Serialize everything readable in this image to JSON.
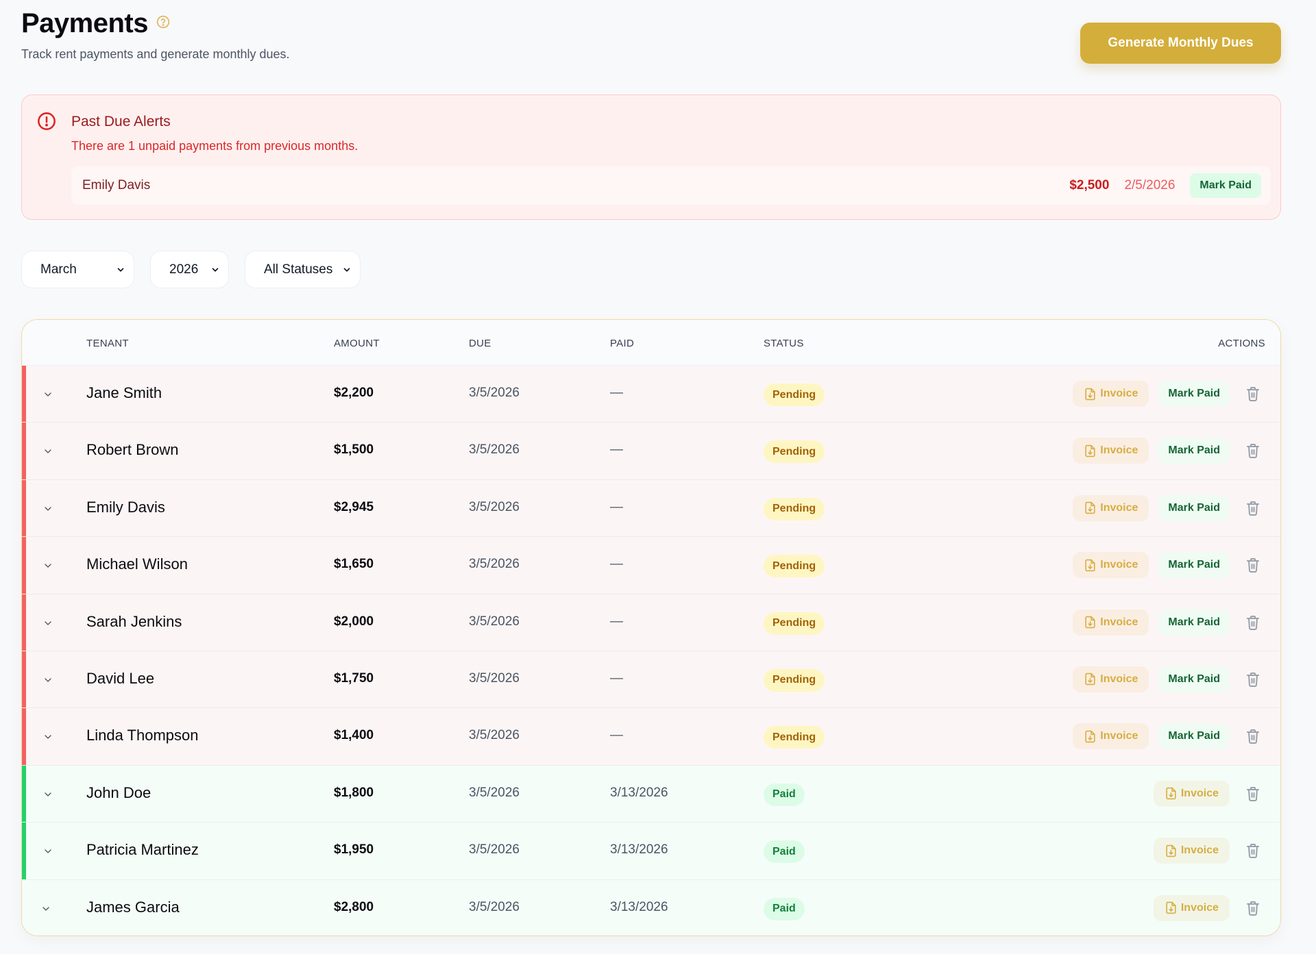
{
  "header": {
    "title": "Payments",
    "help_icon": "help-circle-icon",
    "subtitle": "Track rent payments and generate monthly dues.",
    "generate_button": "Generate Monthly Dues"
  },
  "colors": {
    "accent": "#d4ae3a",
    "pending_bar": "#f26363",
    "paid_bar": "#22d36b",
    "alert_bg": "#fff0f0",
    "alert_text": "#dc2626"
  },
  "alert": {
    "icon": "alert-circle-icon",
    "title": "Past Due Alerts",
    "message": "There are 1 unpaid payments from previous months.",
    "items": [
      {
        "tenant": "Emily Davis",
        "amount": "$2,500",
        "due": "2/5/2026",
        "action": "Mark Paid"
      }
    ]
  },
  "filters": {
    "month": "March",
    "year": "2026",
    "status": "All Statuses"
  },
  "table": {
    "columns": [
      "TENANT",
      "AMOUNT",
      "DUE",
      "PAID",
      "STATUS",
      "ACTIONS"
    ],
    "invoice_label": "Invoice",
    "mark_paid_label": "Mark Paid",
    "rows": [
      {
        "tenant": "Jane Smith",
        "amount": "$2,200",
        "due": "3/5/2026",
        "paid": "—",
        "status": "Pending"
      },
      {
        "tenant": "Robert Brown",
        "amount": "$1,500",
        "due": "3/5/2026",
        "paid": "—",
        "status": "Pending"
      },
      {
        "tenant": "Emily Davis",
        "amount": "$2,945",
        "due": "3/5/2026",
        "paid": "—",
        "status": "Pending"
      },
      {
        "tenant": "Michael Wilson",
        "amount": "$1,650",
        "due": "3/5/2026",
        "paid": "—",
        "status": "Pending"
      },
      {
        "tenant": "Sarah Jenkins",
        "amount": "$2,000",
        "due": "3/5/2026",
        "paid": "—",
        "status": "Pending"
      },
      {
        "tenant": "David Lee",
        "amount": "$1,750",
        "due": "3/5/2026",
        "paid": "—",
        "status": "Pending"
      },
      {
        "tenant": "Linda Thompson",
        "amount": "$1,400",
        "due": "3/5/2026",
        "paid": "—",
        "status": "Pending"
      },
      {
        "tenant": "John Doe",
        "amount": "$1,800",
        "due": "3/5/2026",
        "paid": "3/13/2026",
        "status": "Paid"
      },
      {
        "tenant": "Patricia Martinez",
        "amount": "$1,950",
        "due": "3/5/2026",
        "paid": "3/13/2026",
        "status": "Paid"
      },
      {
        "tenant": "James Garcia",
        "amount": "$2,800",
        "due": "3/5/2026",
        "paid": "3/13/2026",
        "status": "Paid"
      }
    ]
  }
}
